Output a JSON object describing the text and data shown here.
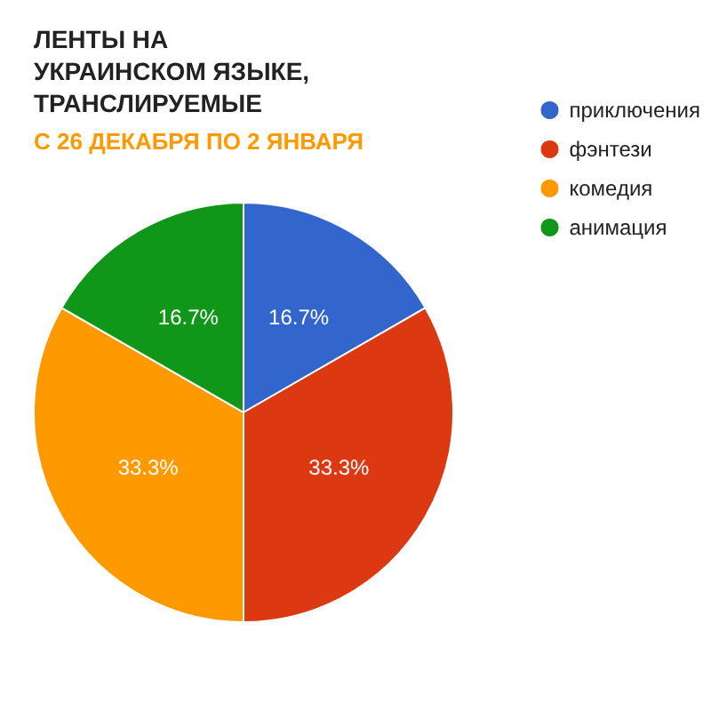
{
  "chart_data": {
    "type": "pie",
    "title": "ЛЕНТЫ НА УКРАИНСКОМ ЯЗЫКЕ, ТРАНСЛИРУЕМЫЕ",
    "subtitle": "С 26 ДЕКАБРЯ ПО 2 ЯНВАРЯ",
    "categories": [
      "приключения",
      "фэнтези",
      "комедия",
      "анимация"
    ],
    "values": [
      16.7,
      33.3,
      33.3,
      16.7
    ],
    "colors": [
      "#3366cc",
      "#dc3912",
      "#ff9900",
      "#109618"
    ],
    "value_labels": [
      "16.7%",
      "33.3%",
      "33.3%",
      "16.7%"
    ],
    "legend": "top right"
  }
}
